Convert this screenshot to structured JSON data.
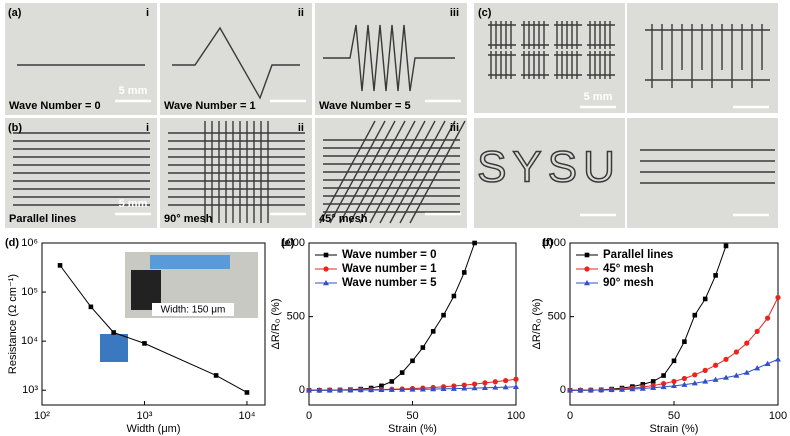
{
  "photos": {
    "a": {
      "label": "(a)",
      "tiles": [
        {
          "index": "i",
          "caption": "Wave Number = 0",
          "scale": "5 mm"
        },
        {
          "index": "ii",
          "caption": "Wave Number = 1"
        },
        {
          "index": "iii",
          "caption": "Wave Number = 5"
        }
      ]
    },
    "b": {
      "label": "(b)",
      "tiles": [
        {
          "index": "i",
          "caption": "Parallel lines",
          "scale": "5 mm"
        },
        {
          "index": "ii",
          "caption": "90° mesh"
        },
        {
          "index": "iii",
          "caption": "45° mesh"
        }
      ]
    },
    "c": {
      "label": "(c)",
      "scale": "5 mm",
      "text": "SYSU"
    }
  },
  "chart_data": [
    {
      "type": "line",
      "panel": "(d)",
      "xlabel": "Width (μm)",
      "ylabel": "Resistance (Ω cm⁻¹)",
      "inset_caption": "Width: 150 μm",
      "x": [
        150,
        300,
        500,
        1000,
        5000,
        10000
      ],
      "values": [
        350000,
        50000,
        15000,
        9000,
        2000,
        900
      ],
      "color": "#000000",
      "marker": "square",
      "xlog": true,
      "ylog": true,
      "xlim": [
        100,
        15000
      ],
      "ylim": [
        500,
        1000000
      ],
      "xticks": [
        {
          "value": 100,
          "label": "10²"
        },
        {
          "value": 1000,
          "label": "10³"
        },
        {
          "value": 10000,
          "label": "10⁴"
        }
      ],
      "yticks": [
        {
          "value": 1000,
          "label": "10³"
        },
        {
          "value": 10000,
          "label": "10⁴"
        },
        {
          "value": 100000,
          "label": "10⁵"
        },
        {
          "value": 1000000,
          "label": "10⁶"
        }
      ]
    },
    {
      "type": "line",
      "panel": "(e)",
      "xlabel": "Strain (%)",
      "ylabel": "ΔR/R₀ (%)",
      "legend": "upper left",
      "x": [
        0,
        5,
        10,
        15,
        20,
        25,
        30,
        35,
        40,
        45,
        50,
        55,
        60,
        65,
        70,
        75,
        80,
        85,
        90,
        95,
        100
      ],
      "series": [
        {
          "name": "Wave number = 0",
          "color": "#000000",
          "marker": "square",
          "values": [
            0,
            0,
            1,
            2,
            4,
            8,
            15,
            30,
            60,
            120,
            200,
            290,
            400,
            510,
            640,
            800,
            1000,
            null,
            null,
            null,
            null
          ]
        },
        {
          "name": "Wave number = 1",
          "color": "#e8241c",
          "marker": "circle",
          "values": [
            0,
            0,
            1,
            1,
            2,
            3,
            4,
            5,
            7,
            9,
            12,
            15,
            19,
            24,
            29,
            35,
            42,
            50,
            58,
            66,
            75
          ]
        },
        {
          "name": "Wave number = 5",
          "color": "#3050c8",
          "marker": "triangle",
          "values": [
            0,
            0,
            0,
            1,
            1,
            2,
            2,
            3,
            4,
            5,
            6,
            7,
            8,
            10,
            11,
            13,
            15,
            17,
            19,
            21,
            24
          ]
        }
      ],
      "xlim": [
        0,
        100
      ],
      "ylim": [
        -100,
        1000
      ],
      "xticks": [
        0,
        50,
        100
      ],
      "yticks": [
        0,
        500,
        1000
      ]
    },
    {
      "type": "line",
      "panel": "(f)",
      "xlabel": "Strain (%)",
      "ylabel": "ΔR/R₀ (%)",
      "legend": "upper left",
      "x": [
        0,
        5,
        10,
        15,
        20,
        25,
        30,
        35,
        40,
        45,
        50,
        55,
        60,
        65,
        70,
        75,
        80,
        85,
        90,
        95,
        100
      ],
      "series": [
        {
          "name": "Parallel lines",
          "color": "#000000",
          "marker": "square",
          "values": [
            0,
            0,
            1,
            3,
            8,
            15,
            25,
            40,
            60,
            100,
            200,
            330,
            510,
            620,
            780,
            980,
            null,
            null,
            null,
            null,
            null
          ]
        },
        {
          "name": "45° mesh",
          "color": "#e8241c",
          "marker": "circle",
          "values": [
            0,
            0,
            1,
            2,
            4,
            8,
            14,
            22,
            32,
            45,
            60,
            80,
            105,
            135,
            170,
            210,
            260,
            320,
            400,
            490,
            630
          ]
        },
        {
          "name": "90° mesh",
          "color": "#3050c8",
          "marker": "triangle",
          "values": [
            0,
            0,
            1,
            2,
            3,
            5,
            8,
            12,
            17,
            23,
            30,
            38,
            48,
            60,
            72,
            86,
            100,
            120,
            150,
            180,
            210
          ]
        }
      ],
      "xlim": [
        0,
        100
      ],
      "ylim": [
        -100,
        1000
      ],
      "xticks": [
        0,
        50,
        100
      ],
      "yticks": [
        0,
        500,
        1000
      ]
    }
  ]
}
